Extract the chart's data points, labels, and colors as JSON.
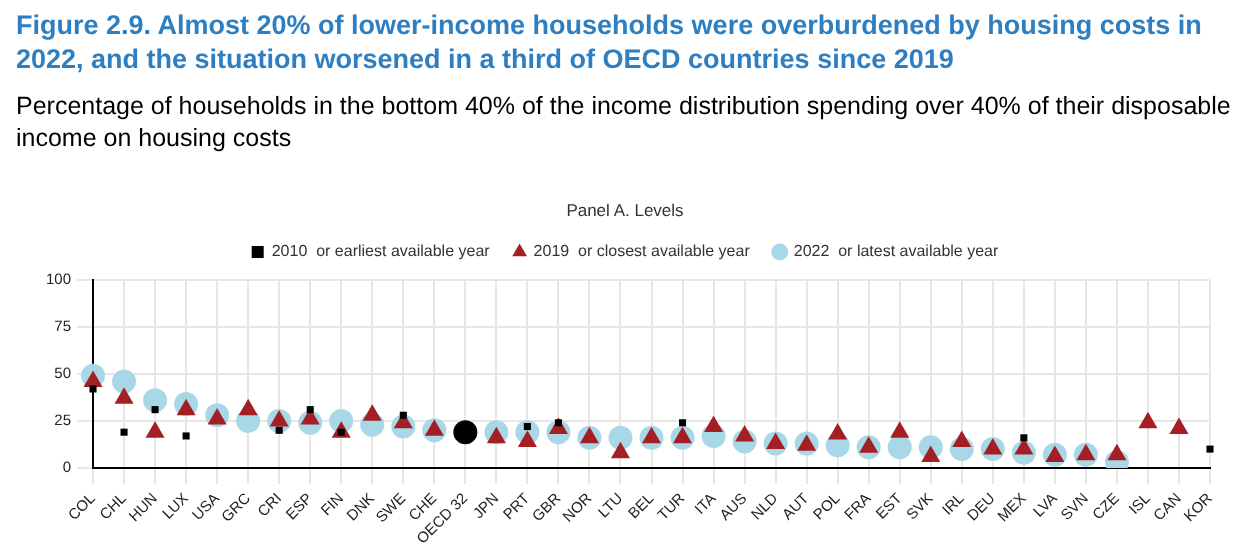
{
  "chart_data": {
    "type": "scatter",
    "title": "Figure 2.9. Almost 20% of lower-income households were overburdened by housing costs in 2022, and the situation worsened in a third of OECD countries since 2019",
    "subtitle": "Percentage of households in the bottom 40% of the income distribution spending over 40% of their disposable income on housing costs",
    "legend_title": "Panel A. Levels",
    "categories": [
      "COL",
      "CHL",
      "HUN",
      "LUX",
      "USA",
      "GRC",
      "CRI",
      "ESP",
      "FIN",
      "DNK",
      "SWE",
      "CHE",
      "OECD 32",
      "JPN",
      "PRT",
      "GBR",
      "NOR",
      "LTU",
      "BEL",
      "TUR",
      "ITA",
      "AUS",
      "NLD",
      "AUT",
      "POL",
      "FRA",
      "EST",
      "SVK",
      "IRL",
      "DEU",
      "MEX",
      "LVA",
      "SVN",
      "CZE",
      "ISL",
      "CAN",
      "KOR"
    ],
    "series": [
      {
        "name": "2010  or earliest available year",
        "color": "#000000",
        "marker": "square",
        "values": [
          42,
          19,
          31,
          17,
          null,
          null,
          20,
          31,
          19,
          null,
          28,
          null,
          null,
          null,
          22,
          24,
          null,
          null,
          null,
          24,
          null,
          null,
          null,
          null,
          null,
          null,
          null,
          null,
          null,
          null,
          16,
          null,
          null,
          null,
          null,
          null,
          10
        ]
      },
      {
        "name": "2019  or closest available year",
        "color": "#a31f24",
        "marker": "triangle",
        "values": [
          46,
          37,
          19,
          31,
          26,
          31,
          25,
          26,
          19,
          28,
          24,
          20,
          null,
          16,
          14,
          21,
          16,
          8,
          16,
          16,
          22,
          17,
          13,
          12,
          18,
          11,
          19,
          6,
          14,
          10,
          10,
          6,
          7,
          7,
          24,
          21,
          null
        ]
      },
      {
        "name": "2022  or latest available year",
        "color": "#a8d8e8",
        "marker": "circle",
        "colors": [
          "#a8d8e8",
          "#a8d8e8",
          "#a8d8e8",
          "#a8d8e8",
          "#a8d8e8",
          "#a8d8e8",
          "#a8d8e8",
          "#a8d8e8",
          "#a8d8e8",
          "#a8d8e8",
          "#a8d8e8",
          "#a8d8e8",
          "#000000",
          "#a8d8e8",
          "#a8d8e8",
          "#a8d8e8",
          "#a8d8e8",
          "#a8d8e8",
          "#a8d8e8",
          "#a8d8e8",
          "#a8d8e8",
          "#a8d8e8",
          "#a8d8e8",
          "#a8d8e8",
          "#a8d8e8",
          "#a8d8e8",
          "#a8d8e8",
          "#a8d8e8",
          "#a8d8e8",
          "#a8d8e8",
          "#a8d8e8",
          "#a8d8e8",
          "#a8d8e8",
          "#a8d8e8",
          "#a8d8e8",
          "#a8d8e8",
          "#a8d8e8"
        ],
        "values": [
          49,
          46,
          36,
          34,
          28,
          25,
          25,
          24,
          25,
          23,
          22,
          20,
          19,
          19,
          19,
          19,
          16,
          16,
          16,
          16,
          17,
          14,
          13,
          13,
          12,
          11,
          11,
          11,
          10,
          10,
          8,
          7,
          7,
          3,
          null,
          null,
          null
        ]
      }
    ],
    "ylim": [
      0,
      100
    ],
    "yticks": [
      0,
      25,
      50,
      75,
      100
    ],
    "grid": true,
    "legend": "top"
  }
}
